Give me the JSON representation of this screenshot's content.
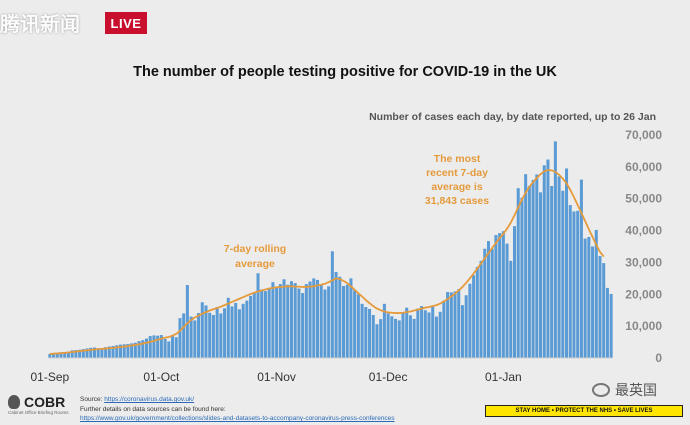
{
  "broadcast": {
    "channel_logo_text": "腾讯新闻",
    "live_label": "LIVE"
  },
  "chart_data": {
    "type": "bar",
    "title": "The number of people testing positive for COVID-19 in the UK",
    "subtitle": "Number of cases each day, by date reported, up to 26 Jan",
    "xlabel": "",
    "ylabel": "",
    "ylim": [
      0,
      70000
    ],
    "y_ticks": [
      "0",
      "10,000",
      "20,000",
      "30,000",
      "40,000",
      "50,000",
      "60,000",
      "70,000"
    ],
    "y_tick_values": [
      0,
      10000,
      20000,
      30000,
      40000,
      50000,
      60000,
      70000
    ],
    "x_ticks": [
      "01-Sep",
      "01-Oct",
      "01-Nov",
      "01-Dec",
      "01-Jan"
    ],
    "x_tick_days": [
      0,
      30,
      61,
      91,
      122
    ],
    "x_start": "01-Sep",
    "x_end": "26 Jan",
    "grid": false,
    "series": [
      {
        "values": [
          1300,
          1500,
          1700,
          1800,
          1900,
          2000,
          2400,
          2500,
          2600,
          2800,
          3000,
          3200,
          3300,
          3100,
          3000,
          3400,
          3600,
          3800,
          4000,
          4200,
          4300,
          4400,
          4600,
          4800,
          5300,
          5600,
          6100,
          6900,
          7100,
          7000,
          7200,
          6000,
          5200,
          7100,
          6500,
          12500,
          14000,
          22900,
          13000,
          11800,
          14100,
          17500,
          16500,
          14200,
          13500,
          16000,
          14000,
          15600,
          18900,
          16200,
          17300,
          15300,
          17000,
          18000,
          19500,
          20500,
          26600,
          21500,
          21000,
          21800,
          23800,
          22000,
          23200,
          24700,
          23000,
          24100,
          23500,
          21800,
          20400,
          23200,
          24000,
          25000,
          24500,
          23000,
          21500,
          22500,
          33500,
          27000,
          25500,
          22600,
          23000,
          25000,
          21300,
          20000,
          17000,
          16000,
          15400,
          13500,
          10600,
          12200,
          17000,
          14000,
          13100,
          12300,
          11800,
          14200,
          15800,
          13400,
          12300,
          15500,
          16300,
          15000,
          14300,
          16200,
          13000,
          14500,
          18000,
          20700,
          20600,
          20900,
          21600,
          16600,
          19700,
          23300,
          26000,
          28600,
          30500,
          34300,
          36700,
          34300,
          38600,
          39200,
          39800,
          35900,
          30500,
          41400,
          53300,
          50300,
          57700,
          54000,
          55900,
          57600,
          52000,
          60500,
          62300,
          54000,
          68000,
          57000,
          52500,
          59500,
          48000,
          46000,
          46200,
          56000,
          37500,
          38000,
          35000,
          40200,
          32000,
          29800,
          22000,
          20100
        ]
      },
      {
        "values": [
          1300,
          1360,
          1430,
          1520,
          1620,
          1740,
          1880,
          2020,
          2160,
          2300,
          2430,
          2560,
          2680,
          2780,
          2870,
          2960,
          3060,
          3170,
          3300,
          3440,
          3590,
          3750,
          3920,
          4100,
          4300,
          4530,
          4780,
          5060,
          5370,
          5720,
          6100,
          6400,
          6600,
          7000,
          7600,
          8500,
          9700,
          10900,
          11900,
          12700,
          13300,
          13900,
          14400,
          14900,
          15300,
          15700,
          16100,
          16600,
          17100,
          17600,
          18100,
          18600,
          19100,
          19600,
          20100,
          20500,
          20900,
          21200,
          21500,
          21800,
          22000,
          22200,
          22300,
          22400,
          22500,
          22500,
          22400,
          22400,
          22300,
          22300,
          22400,
          22500,
          22800,
          23000,
          23300,
          23800,
          24400,
          25000,
          24800,
          24200,
          23500,
          22500,
          21400,
          20300,
          19300,
          18200,
          17200,
          16300,
          15500,
          15000,
          14600,
          14300,
          14200,
          14100,
          14100,
          14200,
          14400,
          14600,
          14900,
          15200,
          15500,
          15800,
          16000,
          16300,
          16600,
          17100,
          17700,
          18500,
          19300,
          20200,
          21200,
          22300,
          23600,
          25000,
          26500,
          28100,
          29700,
          31300,
          32900,
          34500,
          36100,
          37600,
          39000,
          40600,
          42500,
          44800,
          47300,
          49700,
          51900,
          53700,
          55200,
          56500,
          57700,
          58600,
          59000,
          58900,
          58400,
          57500,
          56300,
          54800,
          52800,
          50500,
          48000,
          45500,
          43000,
          40400,
          38000,
          35500,
          33300,
          31843
        ]
      }
    ],
    "annotations": [
      "7-day rolling average",
      "The most recent 7-day average is 31,843 cases"
    ],
    "colors": {
      "bars": "#5b9bd5",
      "average_line": "#e59a3c",
      "annotation_text": "#e59a3c"
    }
  },
  "annotation_text": {
    "rolling_line1": "7-day rolling",
    "rolling_line2": "average",
    "recent_line1": "The most",
    "recent_line2": "recent 7-day",
    "recent_line3": "average is",
    "recent_line4": "31,843 cases"
  },
  "footer": {
    "logo_text": "COBR",
    "logo_subtext": "Cabinet Office Briefing Rooms",
    "sources_label": "Source:",
    "sources_link": "https://coronavirus.data.gov.uk/",
    "details_text": "Further details on data sources can be found here:",
    "details_link": "https://www.gov.uk/government/collections/slides-and-datasets-to-accompany-coronavirus-press-conferences",
    "stay_home_text": "STAY HOME • PROTECT THE NHS • SAVE LIVES",
    "watermark_text": "最英国"
  }
}
